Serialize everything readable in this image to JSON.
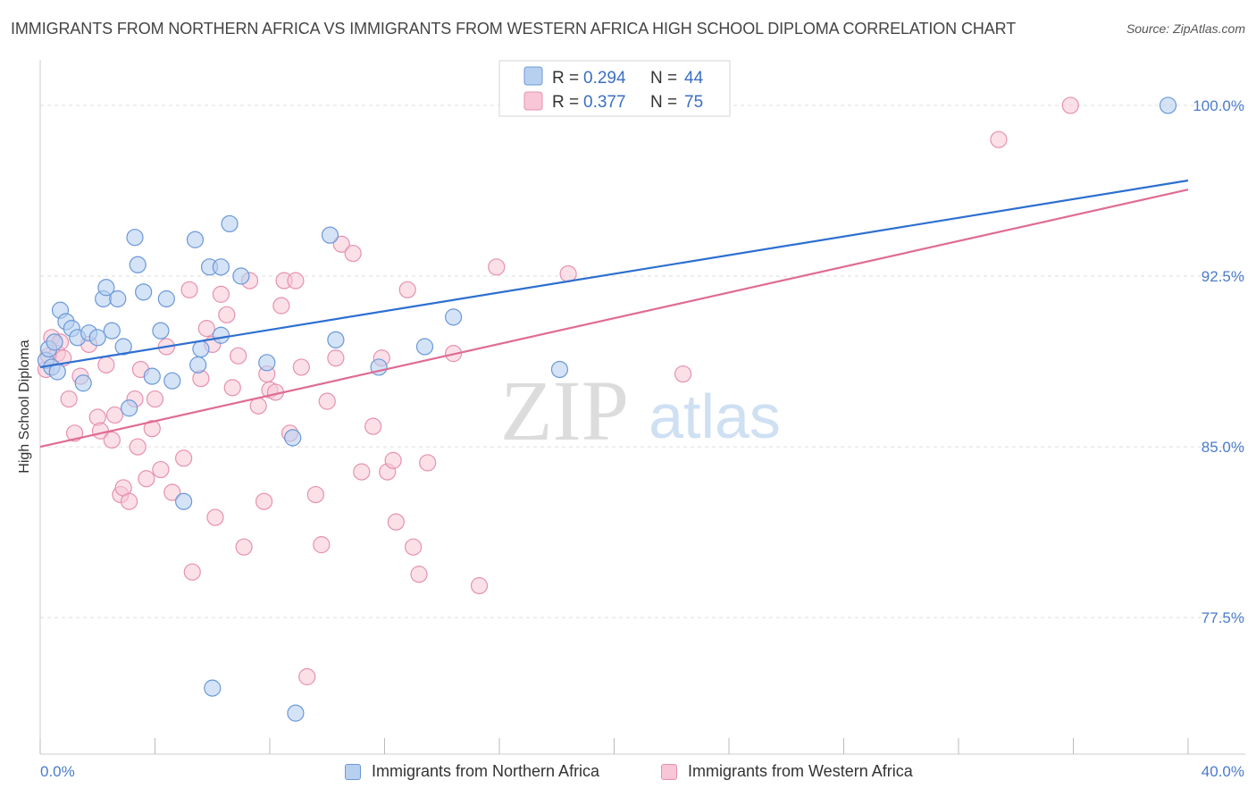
{
  "title": "IMMIGRANTS FROM NORTHERN AFRICA VS IMMIGRANTS FROM WESTERN AFRICA HIGH SCHOOL DIPLOMA CORRELATION CHART",
  "source": "Source: ZipAtlas.com",
  "watermark": {
    "zip": "ZIP",
    "atlas": "atlas"
  },
  "legend": {
    "r_label": "R =",
    "n_label": "N =",
    "entries": [
      {
        "r": "0.294",
        "n": "44"
      },
      {
        "r": "0.377",
        "n": "75"
      }
    ]
  },
  "bottom_legend": [
    "Immigrants from Northern Africa",
    "Immigrants from Western Africa"
  ],
  "colors": {
    "blue_fill": "#b8d0f0",
    "blue_stroke": "#6a98d8",
    "blue_line": "#2d6fd0",
    "pink_fill": "#f8c6d6",
    "pink_stroke": "#e691b0",
    "pink_line": "#e06b94",
    "tick_text": "#4a7cc9",
    "grid": "#dddddd"
  },
  "chart_data": {
    "type": "scatter",
    "title": "IMMIGRANTS FROM NORTHERN AFRICA VS IMMIGRANTS FROM WESTERN AFRICA HIGH SCHOOL DIPLOMA CORRELATION CHART",
    "xlabel": "",
    "ylabel": "High School Diploma",
    "xlim": [
      0,
      40
    ],
    "ylim": [
      71.5,
      102.0
    ],
    "x_tick_labels": [
      "0.0%",
      "40.0%"
    ],
    "y_ticks": [
      77.5,
      85.0,
      92.5,
      100.0
    ],
    "y_tick_labels": [
      "77.5%",
      "85.0%",
      "92.5%",
      "100.0%"
    ],
    "grid": true,
    "legend_position": "top-center",
    "series": [
      {
        "name": "Immigrants from Northern Africa",
        "r": 0.294,
        "n": 44,
        "trend": {
          "x": [
            0,
            40
          ],
          "y": [
            88.5,
            96.7
          ]
        },
        "points": [
          [
            0.2,
            88.8
          ],
          [
            0.3,
            89.3
          ],
          [
            0.4,
            88.5
          ],
          [
            0.5,
            89.6
          ],
          [
            0.6,
            88.3
          ],
          [
            0.7,
            91.0
          ],
          [
            0.9,
            90.5
          ],
          [
            1.1,
            90.2
          ],
          [
            1.3,
            89.8
          ],
          [
            1.5,
            87.8
          ],
          [
            1.7,
            90.0
          ],
          [
            2.0,
            89.8
          ],
          [
            2.2,
            91.5
          ],
          [
            2.3,
            92.0
          ],
          [
            2.5,
            90.1
          ],
          [
            2.7,
            91.5
          ],
          [
            2.9,
            89.4
          ],
          [
            3.1,
            86.7
          ],
          [
            3.3,
            94.2
          ],
          [
            3.4,
            93.0
          ],
          [
            3.6,
            91.8
          ],
          [
            3.9,
            88.1
          ],
          [
            4.2,
            90.1
          ],
          [
            4.4,
            91.5
          ],
          [
            4.6,
            87.9
          ],
          [
            5.0,
            82.6
          ],
          [
            5.4,
            94.1
          ],
          [
            5.5,
            88.6
          ],
          [
            5.6,
            89.3
          ],
          [
            5.9,
            92.9
          ],
          [
            6.0,
            74.4
          ],
          [
            6.3,
            92.9
          ],
          [
            6.3,
            89.9
          ],
          [
            6.6,
            94.8
          ],
          [
            7.0,
            92.5
          ],
          [
            7.9,
            88.7
          ],
          [
            8.8,
            85.4
          ],
          [
            8.9,
            73.3
          ],
          [
            10.1,
            94.3
          ],
          [
            10.3,
            89.7
          ],
          [
            11.8,
            88.5
          ],
          [
            13.4,
            89.4
          ],
          [
            14.4,
            90.7
          ],
          [
            18.1,
            88.4
          ],
          [
            39.3,
            100.0
          ]
        ]
      },
      {
        "name": "Immigrants from Western Africa",
        "r": 0.377,
        "n": 75,
        "trend": {
          "x": [
            0,
            40
          ],
          "y": [
            85.0,
            96.3
          ]
        },
        "points": [
          [
            0.2,
            88.4
          ],
          [
            0.3,
            89.0
          ],
          [
            0.4,
            89.8
          ],
          [
            0.6,
            89.1
          ],
          [
            0.8,
            88.9
          ],
          [
            1.0,
            87.1
          ],
          [
            1.2,
            85.6
          ],
          [
            1.4,
            88.1
          ],
          [
            1.7,
            89.5
          ],
          [
            2.0,
            86.3
          ],
          [
            2.1,
            85.7
          ],
          [
            2.3,
            88.6
          ],
          [
            2.5,
            85.3
          ],
          [
            2.6,
            86.4
          ],
          [
            2.8,
            82.9
          ],
          [
            2.9,
            83.2
          ],
          [
            3.1,
            82.6
          ],
          [
            3.3,
            87.1
          ],
          [
            3.4,
            85.0
          ],
          [
            3.5,
            88.4
          ],
          [
            3.7,
            83.6
          ],
          [
            3.9,
            85.8
          ],
          [
            4.0,
            87.1
          ],
          [
            4.2,
            84.0
          ],
          [
            4.4,
            89.4
          ],
          [
            4.6,
            83.0
          ],
          [
            5.0,
            84.5
          ],
          [
            5.2,
            91.9
          ],
          [
            5.3,
            79.5
          ],
          [
            5.6,
            88.0
          ],
          [
            5.8,
            90.2
          ],
          [
            6.0,
            89.5
          ],
          [
            6.1,
            81.9
          ],
          [
            6.3,
            91.7
          ],
          [
            6.5,
            90.8
          ],
          [
            6.7,
            87.6
          ],
          [
            6.9,
            89.0
          ],
          [
            7.1,
            80.6
          ],
          [
            7.3,
            92.3
          ],
          [
            7.6,
            86.8
          ],
          [
            7.8,
            82.6
          ],
          [
            7.9,
            88.2
          ],
          [
            8.0,
            87.5
          ],
          [
            8.2,
            87.4
          ],
          [
            8.4,
            91.2
          ],
          [
            8.5,
            92.3
          ],
          [
            8.7,
            85.6
          ],
          [
            8.9,
            92.3
          ],
          [
            9.1,
            88.5
          ],
          [
            9.3,
            74.9
          ],
          [
            9.6,
            82.9
          ],
          [
            9.8,
            80.7
          ],
          [
            10.0,
            87.0
          ],
          [
            10.3,
            88.9
          ],
          [
            10.5,
            93.9
          ],
          [
            10.9,
            93.5
          ],
          [
            11.2,
            83.9
          ],
          [
            11.6,
            85.9
          ],
          [
            11.9,
            88.9
          ],
          [
            12.1,
            83.9
          ],
          [
            12.3,
            84.4
          ],
          [
            12.4,
            81.7
          ],
          [
            12.8,
            91.9
          ],
          [
            13.0,
            80.6
          ],
          [
            13.2,
            79.4
          ],
          [
            13.5,
            84.3
          ],
          [
            14.4,
            89.1
          ],
          [
            15.3,
            78.9
          ],
          [
            15.9,
            92.9
          ],
          [
            16.5,
            100.0
          ],
          [
            18.4,
            92.6
          ],
          [
            22.4,
            88.2
          ],
          [
            33.4,
            98.5
          ],
          [
            35.9,
            100.0
          ],
          [
            0.7,
            89.6
          ]
        ]
      }
    ]
  }
}
